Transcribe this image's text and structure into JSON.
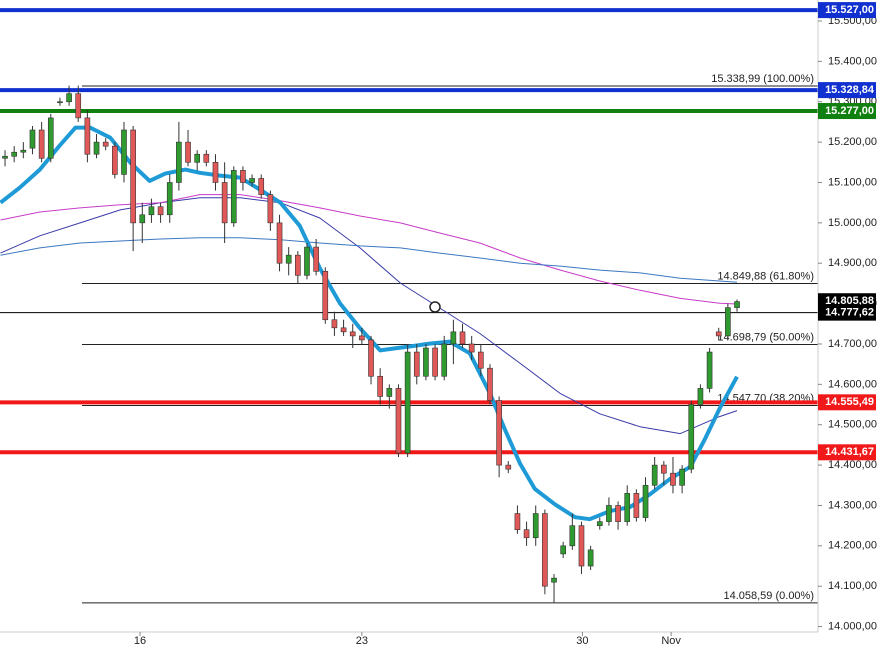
{
  "chart_data": {
    "type": "candlestick",
    "up_color": "#2f9a2f",
    "down_color": "#e05858",
    "open": [
      15160,
      15165,
      15175,
      15185,
      15230,
      15160,
      15300,
      15300,
      15320,
      15260,
      15170,
      15200,
      15190,
      15120,
      15230,
      15000,
      15020,
      15040,
      15020,
      15100,
      15200,
      15150,
      15170,
      15150,
      15100,
      15000,
      15130,
      15100,
      15110,
      15070,
      15000,
      14900,
      14920,
      14870,
      14940,
      14880,
      14760,
      14740,
      14730,
      14720,
      14710,
      14620,
      14570,
      14590,
      14430,
      14680,
      14620,
      14690,
      14620,
      14700,
      14730,
      14700,
      14680,
      14640,
      14560,
      14400,
      14280,
      14240,
      14220,
      14280,
      14110,
      14180,
      14200,
      14250,
      14150,
      14250,
      14260,
      14300,
      14260,
      14330,
      14270,
      14350,
      14400,
      14380,
      14350,
      14390,
      14550,
      14590,
      14730,
      14720,
      14790
    ],
    "high": [
      15180,
      15190,
      15200,
      15240,
      15250,
      15270,
      15310,
      15340,
      15340,
      15280,
      15220,
      15210,
      15200,
      15250,
      15240,
      15050,
      15060,
      15050,
      15120,
      15250,
      15230,
      15180,
      15180,
      15170,
      15150,
      15140,
      15140,
      15120,
      15120,
      15080,
      15020,
      14940,
      14930,
      14950,
      14960,
      14890,
      14780,
      14760,
      14750,
      14740,
      14720,
      14640,
      14600,
      14600,
      14700,
      14700,
      14700,
      14700,
      14720,
      14760,
      14750,
      14720,
      14700,
      14650,
      14570,
      14410,
      14300,
      14260,
      14300,
      14290,
      14130,
      14210,
      14280,
      14260,
      14200,
      14270,
      14320,
      14310,
      14350,
      14340,
      14370,
      14420,
      14410,
      14420,
      14400,
      14560,
      14600,
      14690,
      14740,
      14800,
      14810
    ],
    "low": [
      15140,
      15150,
      15160,
      15170,
      15150,
      15150,
      15290,
      15290,
      15250,
      15150,
      15160,
      15180,
      15110,
      15100,
      14930,
      14950,
      15000,
      15000,
      15000,
      15080,
      15140,
      15130,
      15140,
      15080,
      14950,
      14990,
      15080,
      15090,
      15060,
      14980,
      14880,
      14870,
      14850,
      14860,
      14870,
      14750,
      14720,
      14720,
      14690,
      14700,
      14600,
      14550,
      14540,
      14420,
      14420,
      14600,
      14610,
      14610,
      14610,
      14650,
      14690,
      14660,
      14620,
      14550,
      14370,
      14380,
      14230,
      14200,
      14200,
      14080,
      14060,
      14170,
      14190,
      14130,
      14140,
      14240,
      14250,
      14240,
      14250,
      14260,
      14260,
      14340,
      14350,
      14330,
      14330,
      14380,
      14540,
      14580,
      14710,
      14710,
      14780
    ],
    "close": [
      15165,
      15175,
      15180,
      15230,
      15160,
      15260,
      15300,
      15320,
      15260,
      15170,
      15200,
      15190,
      15120,
      15230,
      15000,
      15020,
      15040,
      15020,
      15100,
      15200,
      15150,
      15170,
      15150,
      15100,
      15000,
      15130,
      15100,
      15110,
      15070,
      15000,
      14900,
      14920,
      14870,
      14940,
      14880,
      14760,
      14740,
      14730,
      14720,
      14710,
      14620,
      14570,
      14590,
      14430,
      14680,
      14620,
      14690,
      14620,
      14700,
      14730,
      14700,
      14680,
      14640,
      14560,
      14400,
      14390,
      14240,
      14220,
      14280,
      14100,
      14120,
      14200,
      14250,
      14150,
      14190,
      14260,
      14300,
      14260,
      14330,
      14270,
      14350,
      14400,
      14380,
      14350,
      14390,
      14550,
      14590,
      14680,
      14720,
      14790,
      14805
    ],
    "moving_averages": [
      {
        "color": "#3a3aa8",
        "width": 1,
        "x": [
          -0.5,
          3.8,
          8.2,
          12.6,
          17.0,
          21.3,
          25.7,
          30.1,
          34.4,
          38.8,
          43.2,
          47.5,
          51.9,
          56.3,
          60.7,
          65.0,
          69.4,
          73.8,
          78.1,
          80.0
        ],
        "values": [
          14925,
          14968,
          15000,
          15032,
          15050,
          15062,
          15062,
          15050,
          15012,
          14938,
          14851,
          14789,
          14726,
          14652,
          14577,
          14527,
          14495,
          14478,
          14520,
          14535
        ]
      },
      {
        "color": "#c83cc8",
        "width": 1,
        "x": [
          -0.5,
          3.8,
          8.2,
          12.6,
          17.0,
          21.3,
          25.7,
          30.1,
          34.4,
          38.8,
          43.2,
          47.5,
          51.9,
          56.3,
          60.7,
          65.0,
          69.4,
          73.8,
          78.1,
          80.0
        ],
        "values": [
          15007,
          15027,
          15037,
          15045,
          15050,
          15070,
          15070,
          15055,
          15037,
          15017,
          15000,
          14975,
          14950,
          14913,
          14883,
          14856,
          14833,
          14813,
          14801,
          14799
        ]
      },
      {
        "color": "#3c78c0",
        "width": 1,
        "x": [
          -0.5,
          3.8,
          8.2,
          12.6,
          17.0,
          21.3,
          25.7,
          30.1,
          34.4,
          38.8,
          43.2,
          47.5,
          51.9,
          56.3,
          60.7,
          65.0,
          69.4,
          73.8,
          78.1,
          80.0
        ],
        "values": [
          14920,
          14938,
          14950,
          14955,
          14960,
          14963,
          14963,
          14958,
          14950,
          14943,
          14938,
          14925,
          14913,
          14900,
          14893,
          14883,
          14876,
          14863,
          14856,
          14853
        ]
      },
      {
        "color": "#1e9ad6",
        "width": 4,
        "x": [
          -0.5,
          1.6,
          3.8,
          6.0,
          7.7,
          9.3,
          11.5,
          13.7,
          15.8,
          17.5,
          19.7,
          21.3,
          23.5,
          25.7,
          27.9,
          30.1,
          32.2,
          34.4,
          36.6,
          38.8,
          41.0,
          42.6,
          44.3,
          46.4,
          48.6,
          50.8,
          53.0,
          54.6,
          56.3,
          57.9,
          60.1,
          62.3,
          63.9,
          66.1,
          68.3,
          70.5,
          72.7,
          74.9,
          76.5,
          78.1,
          80.0
        ],
        "values": [
          15050,
          15087,
          15132,
          15192,
          15236,
          15236,
          15211,
          15149,
          15104,
          15122,
          15132,
          15124,
          15117,
          15112,
          15082,
          15050,
          14993,
          14888,
          14801,
          14739,
          14684,
          14689,
          14694,
          14701,
          14706,
          14677,
          14577,
          14490,
          14403,
          14341,
          14303,
          14271,
          14266,
          14286,
          14296,
          14328,
          14366,
          14396,
          14465,
          14540,
          14619
        ]
      }
    ],
    "fib_levels": [
      {
        "value": 15338.99,
        "label": "15.338,99 (100.00%)"
      },
      {
        "value": 14849.88,
        "label": "14.849,88 (61.80%)"
      },
      {
        "value": 14698.79,
        "label": "14.698,79 (50.00%)"
      },
      {
        "value": 14547.7,
        "label": "14.547,70 (38.20%)"
      },
      {
        "value": 14058.59,
        "label": "14.058,59 (0.00%)"
      }
    ],
    "price_tags": [
      {
        "value": 15527.0,
        "label": "15.527,00",
        "color": "#1030d0",
        "style": "thick"
      },
      {
        "value": 15328.84,
        "label": "15.328,84",
        "color": "#1030d0",
        "style": "thick"
      },
      {
        "value": 15277.0,
        "label": "15.277,00",
        "color": "#108010",
        "style": "thick"
      },
      {
        "value": 14805.88,
        "label": "14.805,88",
        "color": "#000000",
        "style": "none"
      },
      {
        "value": 14777.62,
        "label": "14.777,62",
        "color": "#000000",
        "style": "thin"
      },
      {
        "value": 14555.49,
        "label": "14.555,49",
        "color": "#f01818",
        "style": "thick"
      },
      {
        "value": 14431.67,
        "label": "14.431,67",
        "color": "#f01818",
        "style": "thick"
      }
    ],
    "ylim": [
      13942,
      15552
    ],
    "yticks": [
      {
        "value": 14000,
        "label": "14.000,00"
      },
      {
        "value": 14100,
        "label": "14.100,00"
      },
      {
        "value": 14200,
        "label": "14.200,00"
      },
      {
        "value": 14300,
        "label": "14.300,00"
      },
      {
        "value": 14400,
        "label": "14.400,00"
      },
      {
        "value": 14500,
        "label": "14.500,00"
      },
      {
        "value": 14600,
        "label": "14.600,00"
      },
      {
        "value": 14700,
        "label": "14.700,00"
      },
      {
        "value": 14800,
        "label": "14.800,00"
      },
      {
        "value": 14900,
        "label": "14.900,00"
      },
      {
        "value": 15000,
        "label": "15.000,00"
      },
      {
        "value": 15100,
        "label": "15.100,00"
      },
      {
        "value": 15200,
        "label": "15.200,00"
      },
      {
        "value": 15300,
        "label": "15.300,00"
      },
      {
        "value": 15400,
        "label": "15.400,00"
      },
      {
        "value": 15500,
        "label": "15.500,00"
      }
    ],
    "xlim": [
      -0.55,
      88.85
    ],
    "xticks": [
      {
        "value": 14.75,
        "label": "16"
      },
      {
        "value": 39.0,
        "label": "23"
      },
      {
        "value": 63.1,
        "label": "30"
      },
      {
        "value": 72.8,
        "label": "Nov"
      }
    ]
  }
}
